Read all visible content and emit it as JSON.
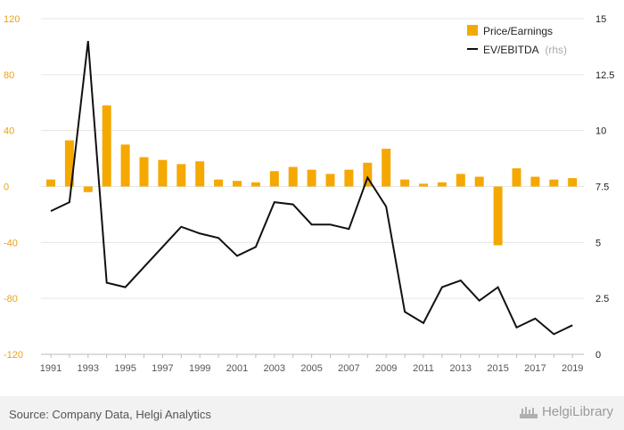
{
  "chart_data": {
    "type": "bar+line",
    "title": "",
    "x": [
      1991,
      1992,
      1993,
      1994,
      1995,
      1996,
      1997,
      1998,
      1999,
      2000,
      2001,
      2002,
      2003,
      2004,
      2005,
      2006,
      2007,
      2008,
      2009,
      2010,
      2011,
      2012,
      2013,
      2014,
      2015,
      2016,
      2017,
      2018,
      2019
    ],
    "x_tick_labels": [
      "1991",
      "1993",
      "1995",
      "1997",
      "1999",
      "2001",
      "2003",
      "2005",
      "2007",
      "2009",
      "2011",
      "2013",
      "2015",
      "2017",
      "2019"
    ],
    "series": [
      {
        "name": "Price/Earnings",
        "type": "bar",
        "axis": "left",
        "color": "#f5a800",
        "values": [
          5,
          33,
          -4,
          58,
          30,
          21,
          19,
          16,
          18,
          5,
          4,
          3,
          11,
          14,
          12,
          9,
          12,
          17,
          27,
          5,
          2,
          3,
          9,
          7,
          -42,
          13,
          7,
          5,
          6
        ]
      },
      {
        "name": "EV/EBITDA",
        "name_suffix": "(rhs)",
        "type": "line",
        "axis": "right",
        "color": "#111111",
        "values": [
          6.4,
          6.8,
          14.0,
          3.2,
          3.0,
          3.9,
          4.8,
          5.7,
          5.4,
          5.2,
          4.4,
          4.8,
          6.8,
          6.7,
          5.8,
          5.8,
          5.6,
          7.9,
          6.6,
          1.9,
          1.4,
          3.0,
          3.3,
          2.4,
          3.0,
          1.2,
          1.6,
          0.9,
          1.3
        ]
      }
    ],
    "y_left": {
      "ylim": [
        -120,
        120
      ],
      "ticks": [
        "120",
        "80",
        "40",
        "0",
        "-40",
        "-80",
        "-120"
      ]
    },
    "y_right": {
      "ylim": [
        0,
        15
      ],
      "ticks": [
        "15",
        "12.5",
        "10",
        "7.5",
        "5",
        "2.5",
        "0"
      ]
    },
    "grid": true,
    "legend_position": "top-right"
  },
  "colors": {
    "bar": "#f5a800",
    "line": "#111111",
    "left_axis_text": "#e8a317"
  },
  "footer": {
    "source": "Source: Company Data, Helgi Analytics",
    "logo_text": "HelgiLibrary"
  }
}
